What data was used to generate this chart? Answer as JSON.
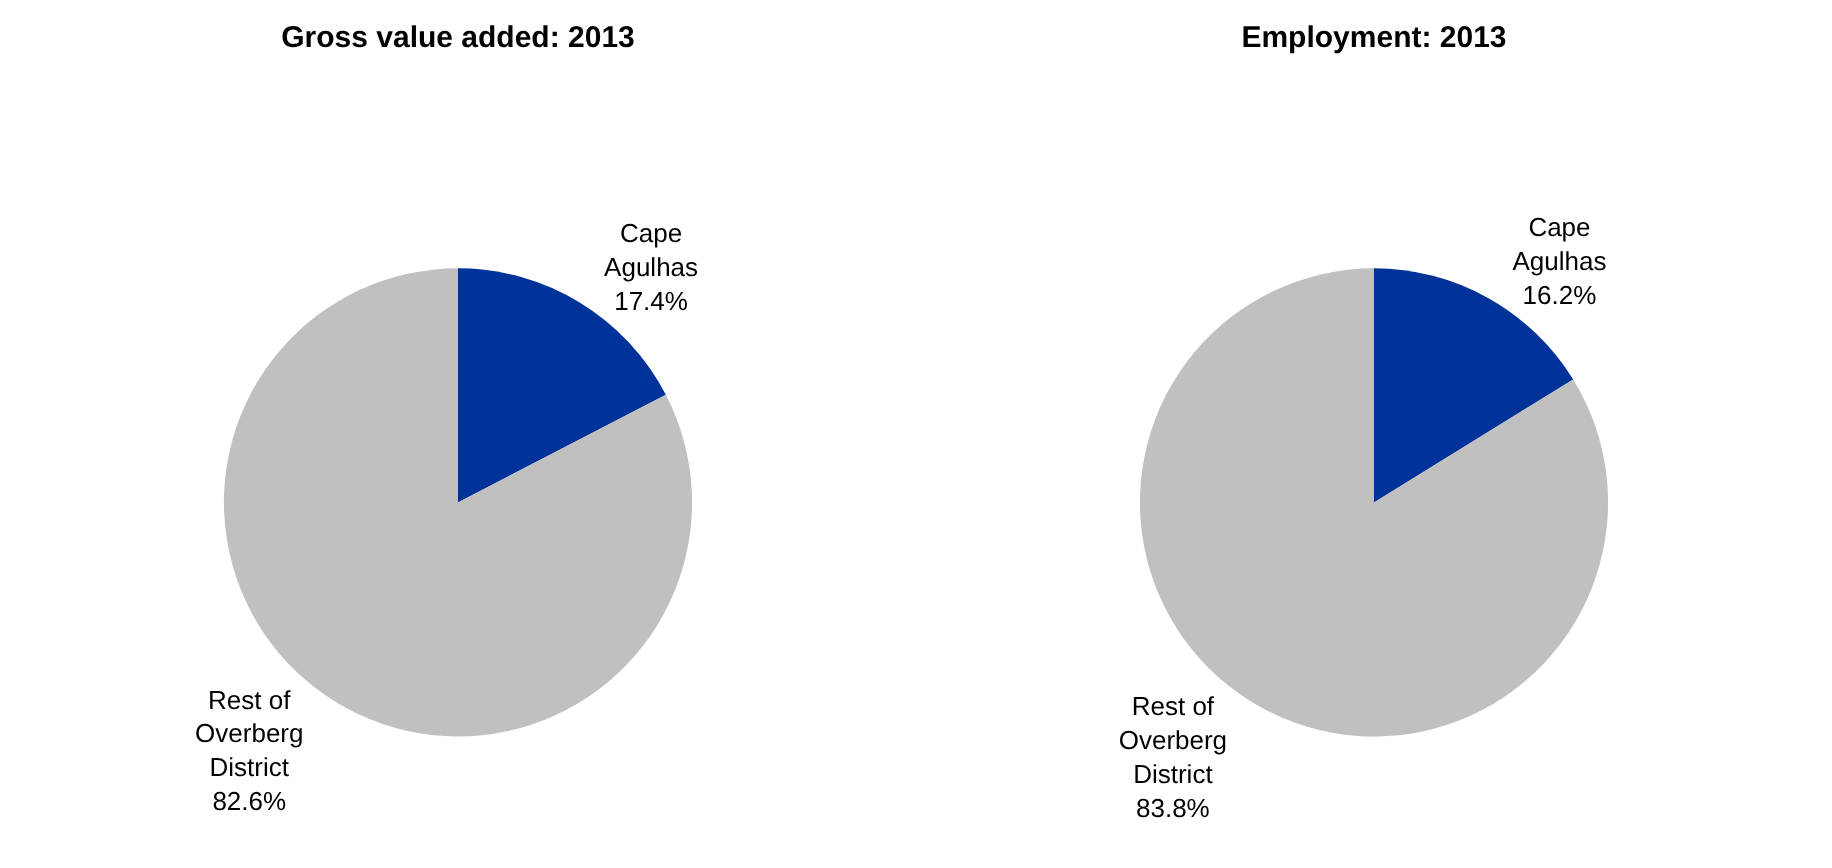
{
  "chart_data": [
    {
      "type": "pie",
      "title": "Gross value added: 2013",
      "categories": [
        "Cape Agulhas",
        "Rest of Overberg District"
      ],
      "values": [
        17.4,
        82.6
      ],
      "value_labels": [
        "17.4%",
        "82.6%"
      ],
      "colors": [
        "#003399",
        "#c0c0c0"
      ],
      "legend": false
    },
    {
      "type": "pie",
      "title": "Employment: 2013",
      "categories": [
        "Cape Agulhas",
        "Rest of Overberg District"
      ],
      "values": [
        16.2,
        83.8
      ],
      "value_labels": [
        "16.2%",
        "83.8%"
      ],
      "colors": [
        "#003399",
        "#c0c0c0"
      ],
      "legend": false
    }
  ]
}
